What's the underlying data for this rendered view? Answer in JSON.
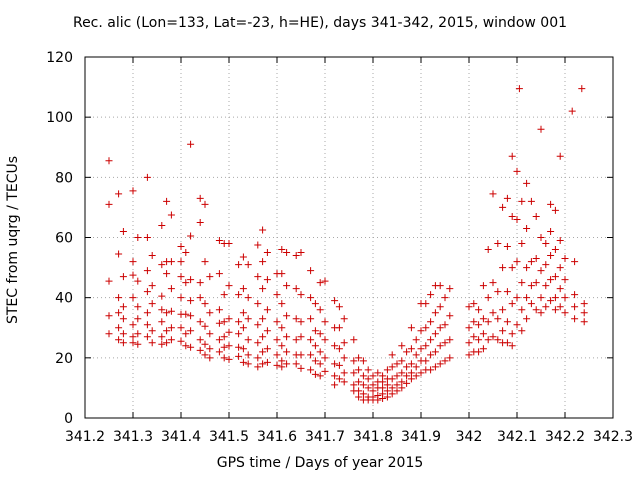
{
  "chart_data": {
    "type": "scatter",
    "title": "Rec. alic (Lon=133, Lat=-23, h=HE), days 341-342, 2015, window 001",
    "xlabel": "GPS time / Days of year 2015",
    "ylabel": "STEC from uqrg / TECUs",
    "xlim": [
      341.2,
      342.3
    ],
    "ylim": [
      0,
      120
    ],
    "x_ticks": [
      "341.2",
      "341.3",
      "341.4",
      "341.5",
      "341.6",
      "341.7",
      "341.8",
      "341.9",
      "342",
      "342.1",
      "342.2",
      "342.3"
    ],
    "y_ticks": [
      "0",
      "20",
      "40",
      "60",
      "80",
      "100",
      "120"
    ],
    "grid": true,
    "marker": "+",
    "color": "#cc0000",
    "points": [
      [
        341.25,
        85.5
      ],
      [
        341.25,
        71
      ],
      [
        341.25,
        45.5
      ],
      [
        341.25,
        34
      ],
      [
        341.25,
        28
      ],
      [
        341.27,
        74.5
      ],
      [
        341.27,
        54.5
      ],
      [
        341.27,
        40
      ],
      [
        341.27,
        35
      ],
      [
        341.27,
        30
      ],
      [
        341.27,
        26
      ],
      [
        341.28,
        62
      ],
      [
        341.28,
        47
      ],
      [
        341.28,
        37
      ],
      [
        341.28,
        33
      ],
      [
        341.28,
        28
      ],
      [
        341.28,
        25
      ],
      [
        341.3,
        75.5
      ],
      [
        341.3,
        52
      ],
      [
        341.3,
        47.5
      ],
      [
        341.3,
        40
      ],
      [
        341.3,
        31
      ],
      [
        341.3,
        27
      ],
      [
        341.3,
        25
      ],
      [
        341.31,
        60
      ],
      [
        341.31,
        45.5
      ],
      [
        341.31,
        37
      ],
      [
        341.31,
        33
      ],
      [
        341.31,
        28
      ],
      [
        341.31,
        24.5
      ],
      [
        341.33,
        80
      ],
      [
        341.33,
        60
      ],
      [
        341.33,
        49
      ],
      [
        341.33,
        42
      ],
      [
        341.33,
        35
      ],
      [
        341.33,
        31
      ],
      [
        341.33,
        27
      ],
      [
        341.34,
        54
      ],
      [
        341.34,
        44
      ],
      [
        341.34,
        38
      ],
      [
        341.34,
        29
      ],
      [
        341.34,
        25
      ],
      [
        341.36,
        64
      ],
      [
        341.36,
        51
      ],
      [
        341.36,
        40.5
      ],
      [
        341.36,
        36
      ],
      [
        341.36,
        32
      ],
      [
        341.36,
        27
      ],
      [
        341.36,
        24.5
      ],
      [
        341.37,
        72
      ],
      [
        341.37,
        52
      ],
      [
        341.37,
        48
      ],
      [
        341.37,
        35
      ],
      [
        341.37,
        29
      ],
      [
        341.37,
        25
      ],
      [
        341.38,
        67.5
      ],
      [
        341.38,
        52
      ],
      [
        341.38,
        43
      ],
      [
        341.38,
        35.5
      ],
      [
        341.38,
        30
      ],
      [
        341.38,
        26
      ],
      [
        341.4,
        57
      ],
      [
        341.4,
        52
      ],
      [
        341.4,
        47
      ],
      [
        341.4,
        40
      ],
      [
        341.4,
        34.5
      ],
      [
        341.4,
        30
      ],
      [
        341.4,
        25.5
      ],
      [
        341.41,
        55
      ],
      [
        341.41,
        45
      ],
      [
        341.41,
        34.5
      ],
      [
        341.41,
        28
      ],
      [
        341.41,
        24
      ],
      [
        341.42,
        91
      ],
      [
        341.42,
        60.5
      ],
      [
        341.42,
        46
      ],
      [
        341.42,
        39
      ],
      [
        341.42,
        34
      ],
      [
        341.42,
        29
      ],
      [
        341.42,
        23.5
      ],
      [
        341.44,
        73
      ],
      [
        341.44,
        65
      ],
      [
        341.44,
        45
      ],
      [
        341.44,
        40
      ],
      [
        341.44,
        32
      ],
      [
        341.44,
        26
      ],
      [
        341.44,
        22.5
      ],
      [
        341.45,
        71
      ],
      [
        341.45,
        52
      ],
      [
        341.45,
        38
      ],
      [
        341.45,
        30.5
      ],
      [
        341.45,
        24.5
      ],
      [
        341.45,
        21
      ],
      [
        341.46,
        47
      ],
      [
        341.46,
        35
      ],
      [
        341.46,
        28
      ],
      [
        341.46,
        23
      ],
      [
        341.46,
        20
      ],
      [
        341.48,
        59
      ],
      [
        341.48,
        48
      ],
      [
        341.48,
        36
      ],
      [
        341.48,
        31.5
      ],
      [
        341.48,
        26
      ],
      [
        341.48,
        22
      ],
      [
        341.49,
        58
      ],
      [
        341.49,
        41
      ],
      [
        341.49,
        32
      ],
      [
        341.49,
        27
      ],
      [
        341.49,
        23.5
      ],
      [
        341.49,
        20
      ],
      [
        341.5,
        58
      ],
      [
        341.5,
        44
      ],
      [
        341.5,
        33
      ],
      [
        341.5,
        28.5
      ],
      [
        341.5,
        24
      ],
      [
        341.5,
        19.5
      ],
      [
        341.52,
        51
      ],
      [
        341.52,
        41
      ],
      [
        341.52,
        32
      ],
      [
        341.52,
        28
      ],
      [
        341.52,
        23.5
      ],
      [
        341.52,
        20.5
      ],
      [
        341.53,
        53.5
      ],
      [
        341.53,
        43
      ],
      [
        341.53,
        35
      ],
      [
        341.53,
        30
      ],
      [
        341.53,
        23
      ],
      [
        341.53,
        18.5
      ],
      [
        341.54,
        51
      ],
      [
        341.54,
        40
      ],
      [
        341.54,
        33
      ],
      [
        341.54,
        26
      ],
      [
        341.54,
        21
      ],
      [
        341.54,
        18
      ],
      [
        341.56,
        57.5
      ],
      [
        341.56,
        47
      ],
      [
        341.56,
        38
      ],
      [
        341.56,
        31
      ],
      [
        341.56,
        25
      ],
      [
        341.56,
        20
      ],
      [
        341.56,
        17
      ],
      [
        341.57,
        62.5
      ],
      [
        341.57,
        52
      ],
      [
        341.57,
        43
      ],
      [
        341.57,
        33
      ],
      [
        341.57,
        27
      ],
      [
        341.57,
        22
      ],
      [
        341.57,
        18
      ],
      [
        341.58,
        55
      ],
      [
        341.58,
        46
      ],
      [
        341.58,
        36
      ],
      [
        341.58,
        29
      ],
      [
        341.58,
        23
      ],
      [
        341.58,
        18.5
      ],
      [
        341.6,
        48
      ],
      [
        341.6,
        41
      ],
      [
        341.6,
        32
      ],
      [
        341.6,
        26
      ],
      [
        341.6,
        21
      ],
      [
        341.6,
        17.5
      ],
      [
        341.61,
        56
      ],
      [
        341.61,
        48
      ],
      [
        341.61,
        38
      ],
      [
        341.61,
        30
      ],
      [
        341.61,
        24
      ],
      [
        341.61,
        19
      ],
      [
        341.61,
        17
      ],
      [
        341.62,
        55
      ],
      [
        341.62,
        44
      ],
      [
        341.62,
        34
      ],
      [
        341.62,
        27
      ],
      [
        341.62,
        22
      ],
      [
        341.62,
        18
      ],
      [
        341.64,
        54
      ],
      [
        341.64,
        43
      ],
      [
        341.64,
        33
      ],
      [
        341.64,
        26
      ],
      [
        341.64,
        21
      ],
      [
        341.64,
        18
      ],
      [
        341.65,
        55
      ],
      [
        341.65,
        41
      ],
      [
        341.65,
        32
      ],
      [
        341.65,
        27
      ],
      [
        341.65,
        21
      ],
      [
        341.65,
        16.5
      ],
      [
        341.67,
        49
      ],
      [
        341.67,
        40
      ],
      [
        341.67,
        33
      ],
      [
        341.67,
        26
      ],
      [
        341.67,
        21
      ],
      [
        341.67,
        16
      ],
      [
        341.68,
        38
      ],
      [
        341.68,
        29
      ],
      [
        341.68,
        24
      ],
      [
        341.68,
        19
      ],
      [
        341.68,
        14.5
      ],
      [
        341.69,
        45
      ],
      [
        341.69,
        36
      ],
      [
        341.69,
        28
      ],
      [
        341.69,
        22
      ],
      [
        341.69,
        18
      ],
      [
        341.69,
        14
      ],
      [
        341.7,
        45.5
      ],
      [
        341.7,
        32
      ],
      [
        341.7,
        26
      ],
      [
        341.7,
        20
      ],
      [
        341.7,
        15.5
      ],
      [
        341.72,
        39
      ],
      [
        341.72,
        30
      ],
      [
        341.72,
        24
      ],
      [
        341.72,
        18
      ],
      [
        341.72,
        14
      ],
      [
        341.72,
        11
      ],
      [
        341.73,
        37
      ],
      [
        341.73,
        30
      ],
      [
        341.73,
        23
      ],
      [
        341.73,
        17.5
      ],
      [
        341.73,
        13
      ],
      [
        341.74,
        33
      ],
      [
        341.74,
        25
      ],
      [
        341.74,
        20
      ],
      [
        341.74,
        15
      ],
      [
        341.74,
        12
      ],
      [
        341.76,
        26
      ],
      [
        341.76,
        19
      ],
      [
        341.76,
        15
      ],
      [
        341.76,
        11
      ],
      [
        341.76,
        9
      ],
      [
        341.77,
        20
      ],
      [
        341.77,
        16
      ],
      [
        341.77,
        12
      ],
      [
        341.77,
        9
      ],
      [
        341.77,
        7
      ],
      [
        341.78,
        19
      ],
      [
        341.78,
        14
      ],
      [
        341.78,
        11
      ],
      [
        341.78,
        8
      ],
      [
        341.78,
        6
      ],
      [
        341.79,
        16
      ],
      [
        341.79,
        13
      ],
      [
        341.79,
        10
      ],
      [
        341.79,
        7
      ],
      [
        341.79,
        6
      ],
      [
        341.8,
        14
      ],
      [
        341.8,
        11
      ],
      [
        341.8,
        9
      ],
      [
        341.8,
        7
      ],
      [
        341.8,
        6
      ],
      [
        341.81,
        15
      ],
      [
        341.81,
        12
      ],
      [
        341.81,
        10
      ],
      [
        341.81,
        7.5
      ],
      [
        341.81,
        6
      ],
      [
        341.82,
        14
      ],
      [
        341.82,
        12
      ],
      [
        341.82,
        10
      ],
      [
        341.82,
        8
      ],
      [
        341.82,
        6.5
      ],
      [
        341.83,
        16
      ],
      [
        341.83,
        13
      ],
      [
        341.83,
        11
      ],
      [
        341.83,
        9
      ],
      [
        341.83,
        7
      ],
      [
        341.84,
        21
      ],
      [
        341.84,
        17
      ],
      [
        341.84,
        13
      ],
      [
        341.84,
        10
      ],
      [
        341.84,
        8
      ],
      [
        341.85,
        18
      ],
      [
        341.85,
        14
      ],
      [
        341.85,
        11
      ],
      [
        341.85,
        9
      ],
      [
        341.86,
        24
      ],
      [
        341.86,
        19
      ],
      [
        341.86,
        15
      ],
      [
        341.86,
        12
      ],
      [
        341.86,
        10
      ],
      [
        341.87,
        22
      ],
      [
        341.87,
        17
      ],
      [
        341.87,
        14
      ],
      [
        341.87,
        11.5
      ],
      [
        341.88,
        30
      ],
      [
        341.88,
        23
      ],
      [
        341.88,
        18
      ],
      [
        341.88,
        15
      ],
      [
        341.88,
        13
      ],
      [
        341.89,
        26
      ],
      [
        341.89,
        21
      ],
      [
        341.89,
        17
      ],
      [
        341.89,
        14
      ],
      [
        341.9,
        38
      ],
      [
        341.9,
        29
      ],
      [
        341.9,
        23
      ],
      [
        341.9,
        19
      ],
      [
        341.9,
        15
      ],
      [
        341.91,
        38
      ],
      [
        341.91,
        30
      ],
      [
        341.91,
        24
      ],
      [
        341.91,
        19
      ],
      [
        341.91,
        16
      ],
      [
        341.92,
        41
      ],
      [
        341.92,
        32
      ],
      [
        341.92,
        26
      ],
      [
        341.92,
        21
      ],
      [
        341.92,
        16
      ],
      [
        341.93,
        44
      ],
      [
        341.93,
        35
      ],
      [
        341.93,
        28
      ],
      [
        341.93,
        22
      ],
      [
        341.93,
        17
      ],
      [
        341.94,
        44
      ],
      [
        341.94,
        37
      ],
      [
        341.94,
        30
      ],
      [
        341.94,
        24
      ],
      [
        341.94,
        18
      ],
      [
        341.95,
        40
      ],
      [
        341.95,
        31
      ],
      [
        341.95,
        25
      ],
      [
        341.95,
        19
      ],
      [
        341.96,
        43
      ],
      [
        341.96,
        34
      ],
      [
        341.96,
        26
      ],
      [
        341.96,
        20
      ],
      [
        342.0,
        37
      ],
      [
        342.0,
        30
      ],
      [
        342.0,
        25
      ],
      [
        342.0,
        21
      ],
      [
        342.01,
        38
      ],
      [
        342.01,
        32
      ],
      [
        342.01,
        27
      ],
      [
        342.01,
        22
      ],
      [
        342.02,
        36
      ],
      [
        342.02,
        31
      ],
      [
        342.02,
        26
      ],
      [
        342.02,
        22
      ],
      [
        342.03,
        44
      ],
      [
        342.03,
        33
      ],
      [
        342.03,
        28
      ],
      [
        342.03,
        23
      ],
      [
        342.04,
        56
      ],
      [
        342.04,
        40
      ],
      [
        342.04,
        32
      ],
      [
        342.04,
        26
      ],
      [
        342.05,
        74.5
      ],
      [
        342.05,
        45
      ],
      [
        342.05,
        35
      ],
      [
        342.05,
        27
      ],
      [
        342.06,
        58
      ],
      [
        342.06,
        42
      ],
      [
        342.06,
        33
      ],
      [
        342.06,
        26
      ],
      [
        342.07,
        70
      ],
      [
        342.07,
        50
      ],
      [
        342.07,
        36
      ],
      [
        342.07,
        29
      ],
      [
        342.07,
        25
      ],
      [
        342.08,
        73
      ],
      [
        342.08,
        57
      ],
      [
        342.08,
        42
      ],
      [
        342.08,
        32
      ],
      [
        342.08,
        25
      ],
      [
        342.09,
        87
      ],
      [
        342.09,
        67
      ],
      [
        342.09,
        50
      ],
      [
        342.09,
        38
      ],
      [
        342.09,
        28
      ],
      [
        342.09,
        24
      ],
      [
        342.1,
        82
      ],
      [
        342.1,
        66
      ],
      [
        342.1,
        52
      ],
      [
        342.1,
        40
      ],
      [
        342.1,
        31
      ],
      [
        342.105,
        109.5
      ],
      [
        342.11,
        72
      ],
      [
        342.11,
        58
      ],
      [
        342.11,
        45
      ],
      [
        342.11,
        36
      ],
      [
        342.11,
        29
      ],
      [
        342.12,
        78
      ],
      [
        342.12,
        63
      ],
      [
        342.12,
        50
      ],
      [
        342.12,
        40
      ],
      [
        342.12,
        33
      ],
      [
        342.13,
        72
      ],
      [
        342.13,
        52
      ],
      [
        342.13,
        44
      ],
      [
        342.13,
        38
      ],
      [
        342.14,
        67
      ],
      [
        342.14,
        53
      ],
      [
        342.14,
        45
      ],
      [
        342.14,
        36
      ],
      [
        342.15,
        96
      ],
      [
        342.15,
        60
      ],
      [
        342.15,
        49
      ],
      [
        342.15,
        40
      ],
      [
        342.15,
        35
      ],
      [
        342.16,
        58
      ],
      [
        342.16,
        51
      ],
      [
        342.16,
        44
      ],
      [
        342.16,
        37
      ],
      [
        342.17,
        71
      ],
      [
        342.17,
        62
      ],
      [
        342.17,
        54
      ],
      [
        342.17,
        46
      ],
      [
        342.17,
        39
      ],
      [
        342.18,
        69
      ],
      [
        342.18,
        56
      ],
      [
        342.18,
        47
      ],
      [
        342.18,
        40
      ],
      [
        342.18,
        36
      ],
      [
        342.19,
        87
      ],
      [
        342.19,
        59
      ],
      [
        342.19,
        50
      ],
      [
        342.19,
        43
      ],
      [
        342.19,
        37
      ],
      [
        342.2,
        53
      ],
      [
        342.2,
        46
      ],
      [
        342.2,
        40
      ],
      [
        342.2,
        35
      ],
      [
        342.215,
        102
      ],
      [
        342.22,
        52
      ],
      [
        342.22,
        41
      ],
      [
        342.22,
        37
      ],
      [
        342.22,
        33
      ],
      [
        342.235,
        109.5
      ],
      [
        342.24,
        38
      ],
      [
        342.24,
        35
      ],
      [
        342.24,
        32
      ]
    ]
  }
}
